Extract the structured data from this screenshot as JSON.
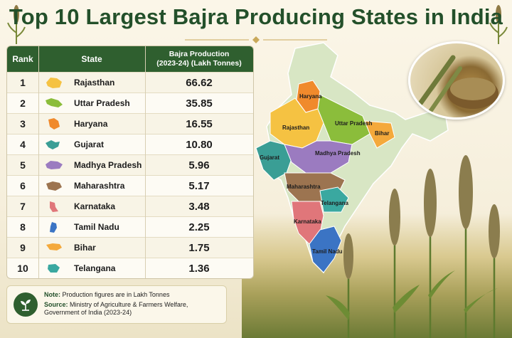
{
  "title": "Top 10 Largest Bajra Producing States in India",
  "table": {
    "headers": {
      "rank": "Rank",
      "state": "State",
      "value_line1": "Bajra Production",
      "value_line2": "(2023-24) (Lakh Tonnes)"
    },
    "rows": [
      {
        "rank": "1",
        "state": "Rajasthan",
        "value": "66.62",
        "color": "#f5c242"
      },
      {
        "rank": "2",
        "state": "Uttar Pradesh",
        "value": "35.85",
        "color": "#8bbd3b"
      },
      {
        "rank": "3",
        "state": "Haryana",
        "value": "16.55",
        "color": "#f08a2c"
      },
      {
        "rank": "4",
        "state": "Gujarat",
        "value": "10.80",
        "color": "#3a9e95"
      },
      {
        "rank": "5",
        "state": "Madhya Pradesh",
        "value": "5.96",
        "color": "#9b7bc0"
      },
      {
        "rank": "6",
        "state": "Maharashtra",
        "value": "5.17",
        "color": "#9c7450"
      },
      {
        "rank": "7",
        "state": "Karnataka",
        "value": "3.48",
        "color": "#e0767a"
      },
      {
        "rank": "8",
        "state": "Tamil Nadu",
        "value": "2.25",
        "color": "#3b74c4"
      },
      {
        "rank": "9",
        "state": "Bihar",
        "value": "1.75",
        "color": "#f4a93b"
      },
      {
        "rank": "10",
        "state": "Telangana",
        "value": "1.36",
        "color": "#3aa8a0"
      }
    ]
  },
  "note": {
    "note_label": "Note:",
    "note_text": "Production figures are in Lakh Tonnes",
    "source_label": "Source:",
    "source_text": "Ministry of Agriculture & Farmers Welfare, Government of India (2023-24)"
  },
  "map_labels": [
    "Haryana",
    "Rajasthan",
    "Uttar Pradesh",
    "Bihar",
    "Gujarat",
    "Madhya Pradesh",
    "Maharashtra",
    "Telangana",
    "Karnataka",
    "Tamil Nadu"
  ],
  "chart_data": {
    "type": "table",
    "title": "Top 10 Largest Bajra Producing States in India",
    "columns": [
      "Rank",
      "State",
      "Bajra Production (2023-24) (Lakh Tonnes)"
    ],
    "categories": [
      "Rajasthan",
      "Uttar Pradesh",
      "Haryana",
      "Gujarat",
      "Madhya Pradesh",
      "Maharashtra",
      "Karnataka",
      "Tamil Nadu",
      "Bihar",
      "Telangana"
    ],
    "values": [
      66.62,
      35.85,
      16.55,
      10.8,
      5.96,
      5.17,
      3.48,
      2.25,
      1.75,
      1.36
    ]
  },
  "colors": {
    "header_green": "#2f5f2f",
    "title_green": "#23502a",
    "background": "#fbf6e8"
  }
}
